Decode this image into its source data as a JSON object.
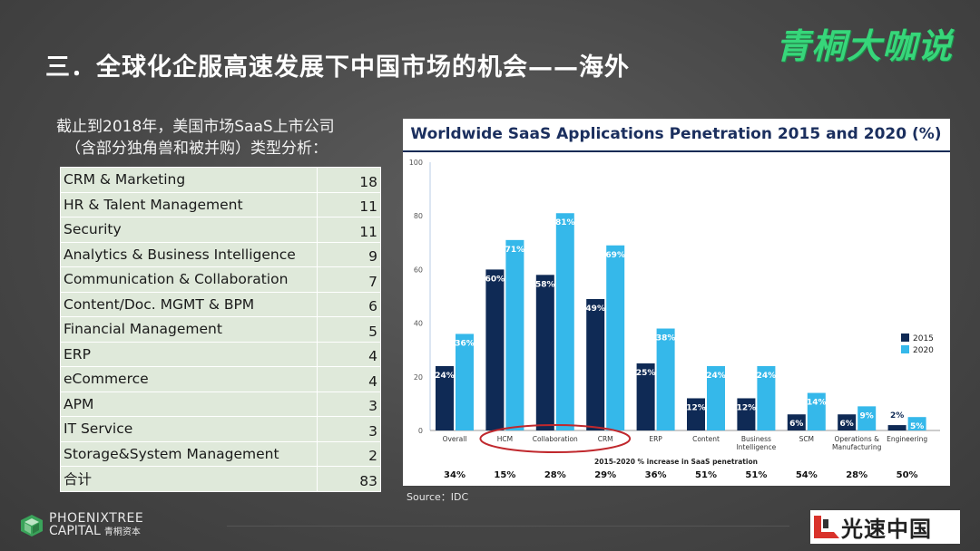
{
  "slide": {
    "title": "三．全球化企服高速发展下中国市场的机会——海外",
    "brand": "青桐大咖说"
  },
  "intro": {
    "line1": "截止到2018年，美国市场SaaS上市公司",
    "line2": "（含部分独角兽和被并购）类型分析："
  },
  "table": {
    "rows": [
      {
        "name": "CRM & Marketing",
        "count": "18"
      },
      {
        "name": "HR & Talent Management",
        "count": "11"
      },
      {
        "name": "Security",
        "count": "11"
      },
      {
        "name": "Analytics & Business Intelligence",
        "count": "9"
      },
      {
        "name": "Communication & Collaboration",
        "count": "7"
      },
      {
        "name": "Content/Doc. MGMT & BPM",
        "count": "6"
      },
      {
        "name": "Financial Management",
        "count": "5"
      },
      {
        "name": "ERP",
        "count": "4"
      },
      {
        "name": "eCommerce",
        "count": "4"
      },
      {
        "name": "APM",
        "count": "3"
      },
      {
        "name": "IT Service",
        "count": "3"
      },
      {
        "name": "Storage&System  Management",
        "count": "2"
      },
      {
        "name": "合计",
        "count": "83"
      }
    ]
  },
  "chart_data": {
    "type": "bar",
    "title": "Worldwide SaaS Applications Penetration 2015 and 2020 (%)",
    "categories": [
      "Overall",
      "HCM",
      "Collaboration",
      "CRM",
      "ERP",
      "Content",
      "Business Intelligence",
      "SCM",
      "Operations & Manufacturing",
      "Engineering"
    ],
    "series": [
      {
        "name": "2015",
        "color": "#0f2a55",
        "values": [
          24,
          60,
          58,
          49,
          25,
          12,
          12,
          6,
          6,
          2
        ]
      },
      {
        "name": "2020",
        "color": "#35b8ea",
        "values": [
          36,
          71,
          81,
          69,
          38,
          24,
          24,
          14,
          9,
          5
        ]
      }
    ],
    "ylim": [
      0,
      100
    ],
    "yticks": [
      0,
      20,
      40,
      60,
      80,
      100
    ],
    "value_suffix": "%",
    "increase_label": "2015-2020 % increase in SaaS penetration",
    "increases": [
      "34%",
      "15%",
      "28%",
      "29%",
      "36%",
      "51%",
      "51%",
      "54%",
      "28%",
      "50%"
    ],
    "highlighted_categories": [
      "HCM",
      "Collaboration",
      "CRM"
    ],
    "highlight_color": "#c0282d",
    "legend_position": "right",
    "grid": false
  },
  "source": "Source：IDC",
  "footer": {
    "left_logo_line1": "PHOENIXTREE",
    "left_logo_line2": "CAPITAL",
    "left_logo_line2_cn": "青桐资本",
    "right_logo": "光速中国"
  }
}
